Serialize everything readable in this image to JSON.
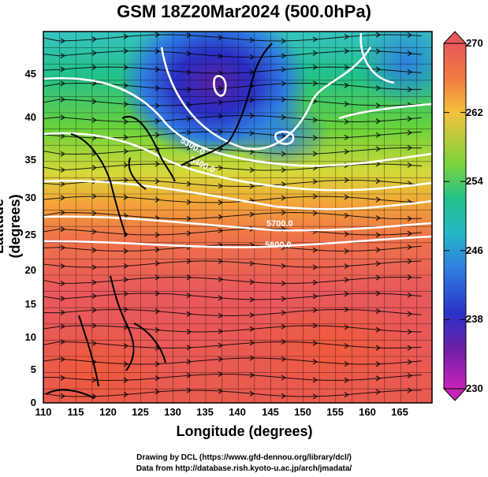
{
  "header": {
    "title": "GSM 18Z20Mar2024 (500.0hPa)"
  },
  "axes": {
    "xlabel": "Longitude (degrees)",
    "ylabel": "Latitude  (degrees)",
    "xticks": [
      "110",
      "115",
      "120",
      "125",
      "130",
      "135",
      "140",
      "145",
      "150",
      "155",
      "160",
      "165"
    ],
    "yticks": [
      "0",
      "5",
      "10",
      "15",
      "20",
      "25",
      "30",
      "35",
      "40",
      "45"
    ]
  },
  "colorbar": {
    "labels": [
      "270",
      "262",
      "254",
      "246",
      "238",
      "230"
    ],
    "colors": [
      "#e8585a",
      "#f08a3c",
      "#f5c63c",
      "#7ad43c",
      "#2fc77a",
      "#25b7c7",
      "#2f7fe0",
      "#2a33c8",
      "#6a1fa8",
      "#c823b8"
    ]
  },
  "contours": {
    "labels": [
      "5300.0",
      "5400.0",
      "5700.0",
      "5800.0"
    ]
  },
  "footer": {
    "credit_line1": "Drawing by DCL (https://www.gfd-dennou.org/library/dcl/)",
    "credit_line2": "Data from http://database.rish.kyoto-u.ac.jp/arch/jmadata/"
  },
  "chart_data": {
    "type": "heatmap",
    "title": "GSM 18Z20Mar2024 (500.0hPa)",
    "xlabel": "Longitude (degrees)",
    "ylabel": "Latitude  (degrees)",
    "xlim": [
      110,
      170
    ],
    "ylim": [
      0,
      50
    ],
    "colorbar_range": [
      230,
      270
    ],
    "colorbar_ticks": [
      270,
      262,
      254,
      246,
      238,
      230
    ],
    "contour_labels": [
      "5300.0",
      "5400.0",
      "5700.0",
      "5800.0"
    ]
  }
}
